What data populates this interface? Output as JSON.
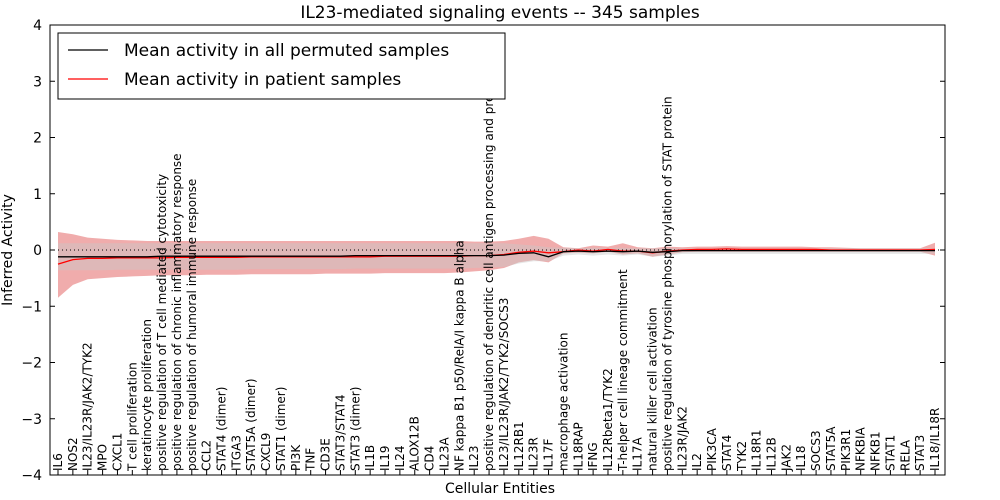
{
  "chart_data": {
    "type": "line",
    "title": "IL23-mediated signaling events -- 345 samples",
    "xlabel": "Cellular Entities",
    "ylabel": "Inferred Activity",
    "ylim": [
      -4,
      4
    ],
    "yticks": [
      -4,
      -3,
      -2,
      -1,
      0,
      1,
      2,
      3,
      4
    ],
    "legend": {
      "position": "top-left",
      "entries": [
        {
          "label": "Mean activity in all permuted samples",
          "color": "#000000"
        },
        {
          "label": "Mean activity in patient samples",
          "color": "#ff0000"
        }
      ]
    },
    "categories": [
      "IL6",
      "NOS2",
      "IL23/IL23R/JAK2/TYK2",
      "MPO",
      "CXCL1",
      "T cell proliferation",
      "keratinocyte proliferation",
      "positive regulation of T cell mediated cytotoxicity",
      "positive regulation of chronic inflammatory response",
      "positive regulation of humoral immune response",
      "CCL2",
      "STAT4 (dimer)",
      "ITGA3",
      "STAT5A (dimer)",
      "CXCL9",
      "STAT1 (dimer)",
      "PI3K",
      "TNF",
      "CD3E",
      "STAT3/STAT4",
      "STAT3 (dimer)",
      "IL1B",
      "IL19",
      "IL24",
      "ALOX12B",
      "CD4",
      "IL23A",
      "NF kappa B1 p50/RelA/I kappa B alpha",
      "IL23",
      "positive regulation of dendritic cell antigen processing and presentation",
      "IL23/IL23R/JAK2/TYK2/SOCS3",
      "IL12RB1",
      "IL23R",
      "IL17F",
      "macrophage activation",
      "IL18RAP",
      "IFNG",
      "IL12Rbeta1/TYK2",
      "T-helper cell lineage commitment",
      "IL17A",
      "natural killer cell activation",
      "positive regulation of tyrosine phosphorylation of STAT protein",
      "IL23R/JAK2",
      "IL2",
      "PIK3CA",
      "STAT4",
      "TYK2",
      "IL18R1",
      "IL12B",
      "JAK2",
      "IL18",
      "SOCS3",
      "STAT5A",
      "PIK3R1",
      "NFKBIA",
      "NFKB1",
      "STAT1",
      "RELA",
      "STAT3",
      "IL18/IL18R"
    ],
    "series": [
      {
        "name": "Mean activity in patient samples",
        "color": "#ff0000",
        "values": [
          -0.25,
          -0.17,
          -0.15,
          -0.15,
          -0.14,
          -0.14,
          -0.14,
          -0.14,
          -0.13,
          -0.13,
          -0.13,
          -0.13,
          -0.13,
          -0.12,
          -0.12,
          -0.12,
          -0.12,
          -0.12,
          -0.12,
          -0.12,
          -0.12,
          -0.12,
          -0.11,
          -0.11,
          -0.11,
          -0.11,
          -0.11,
          -0.11,
          -0.1,
          -0.1,
          -0.08,
          -0.04,
          -0.02,
          -0.05,
          -0.03,
          0.0,
          -0.02,
          0.01,
          -0.02,
          -0.02,
          -0.05,
          -0.02,
          0.0,
          0.01,
          0.01,
          0.02,
          0.01,
          0.01,
          0.01,
          0.01,
          0.01,
          0.01,
          0.0,
          0.0,
          0.0,
          0.0,
          0.0,
          0.0,
          0.0,
          0.01
        ],
        "upper": [
          0.32,
          0.28,
          0.22,
          0.2,
          0.18,
          0.17,
          0.16,
          0.16,
          0.16,
          0.16,
          0.16,
          0.16,
          0.16,
          0.16,
          0.16,
          0.16,
          0.16,
          0.16,
          0.16,
          0.16,
          0.16,
          0.16,
          0.16,
          0.16,
          0.16,
          0.16,
          0.16,
          0.16,
          0.15,
          0.15,
          0.16,
          0.2,
          0.25,
          0.2,
          0.05,
          0.03,
          0.08,
          0.06,
          0.12,
          0.05,
          0.03,
          0.06,
          0.05,
          0.06,
          0.06,
          0.07,
          0.06,
          0.06,
          0.06,
          0.06,
          0.06,
          0.05,
          0.05,
          0.04,
          0.03,
          0.03,
          0.03,
          0.03,
          0.03,
          0.13
        ],
        "lower": [
          -0.85,
          -0.62,
          -0.52,
          -0.5,
          -0.48,
          -0.47,
          -0.46,
          -0.45,
          -0.45,
          -0.45,
          -0.44,
          -0.44,
          -0.44,
          -0.43,
          -0.43,
          -0.43,
          -0.43,
          -0.43,
          -0.42,
          -0.42,
          -0.42,
          -0.42,
          -0.41,
          -0.41,
          -0.41,
          -0.41,
          -0.41,
          -0.4,
          -0.38,
          -0.36,
          -0.32,
          -0.22,
          -0.18,
          -0.22,
          -0.06,
          -0.05,
          -0.06,
          -0.03,
          -0.08,
          -0.06,
          -0.12,
          -0.08,
          -0.04,
          -0.03,
          -0.03,
          -0.03,
          -0.03,
          -0.03,
          -0.03,
          -0.03,
          -0.03,
          -0.03,
          -0.03,
          -0.03,
          -0.03,
          -0.03,
          -0.03,
          -0.03,
          -0.03,
          -0.1
        ]
      },
      {
        "name": "Mean activity in all permuted samples",
        "color": "#000000",
        "values": [
          -0.12,
          -0.12,
          -0.12,
          -0.12,
          -0.12,
          -0.12,
          -0.12,
          -0.11,
          -0.11,
          -0.11,
          -0.11,
          -0.11,
          -0.11,
          -0.11,
          -0.11,
          -0.11,
          -0.11,
          -0.11,
          -0.11,
          -0.11,
          -0.1,
          -0.1,
          -0.1,
          -0.1,
          -0.1,
          -0.1,
          -0.1,
          -0.1,
          -0.1,
          -0.1,
          -0.09,
          -0.06,
          -0.05,
          -0.12,
          -0.03,
          -0.02,
          -0.03,
          -0.02,
          -0.03,
          -0.02,
          -0.04,
          -0.03,
          -0.01,
          -0.01,
          -0.01,
          -0.01,
          -0.01,
          -0.01,
          -0.01,
          -0.01,
          -0.01,
          -0.01,
          -0.01,
          -0.01,
          -0.01,
          -0.01,
          -0.01,
          -0.01,
          -0.01,
          -0.01
        ],
        "upper": [
          0.12,
          0.12,
          0.12,
          0.12,
          0.12,
          0.12,
          0.12,
          0.12,
          0.12,
          0.12,
          0.12,
          0.12,
          0.12,
          0.12,
          0.12,
          0.12,
          0.12,
          0.12,
          0.12,
          0.12,
          0.12,
          0.12,
          0.12,
          0.12,
          0.12,
          0.12,
          0.12,
          0.12,
          0.12,
          0.12,
          0.12,
          0.1,
          0.08,
          0.05,
          0.04,
          0.03,
          0.04,
          0.04,
          0.04,
          0.03,
          0.03,
          0.03,
          0.03,
          0.03,
          0.03,
          0.03,
          0.03,
          0.03,
          0.03,
          0.03,
          0.03,
          0.03,
          0.03,
          0.03,
          0.03,
          0.03,
          0.03,
          0.03,
          0.03,
          0.03
        ],
        "lower": [
          -0.36,
          -0.36,
          -0.36,
          -0.36,
          -0.35,
          -0.35,
          -0.35,
          -0.35,
          -0.35,
          -0.35,
          -0.35,
          -0.35,
          -0.35,
          -0.34,
          -0.34,
          -0.34,
          -0.34,
          -0.34,
          -0.34,
          -0.34,
          -0.33,
          -0.33,
          -0.33,
          -0.33,
          -0.33,
          -0.33,
          -0.33,
          -0.33,
          -0.32,
          -0.31,
          -0.3,
          -0.24,
          -0.2,
          -0.2,
          -0.1,
          -0.08,
          -0.1,
          -0.08,
          -0.1,
          -0.08,
          -0.12,
          -0.1,
          -0.07,
          -0.07,
          -0.07,
          -0.07,
          -0.07,
          -0.07,
          -0.07,
          -0.07,
          -0.07,
          -0.07,
          -0.07,
          -0.07,
          -0.07,
          -0.07,
          -0.07,
          -0.07,
          -0.07,
          -0.07
        ]
      }
    ]
  }
}
